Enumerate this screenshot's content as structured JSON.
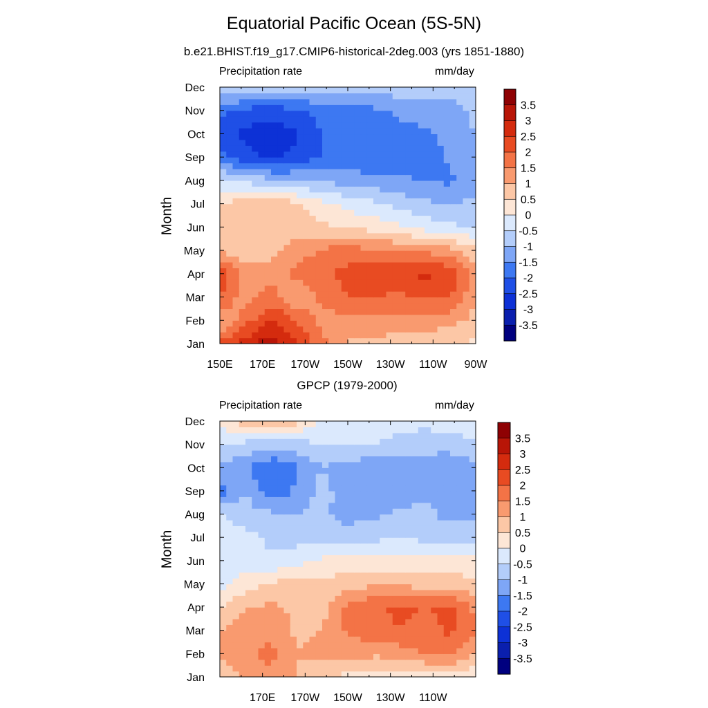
{
  "title": "Equatorial Pacific Ocean (5S-5N)",
  "subtitle": "b.e21.BHIST.f19_g17.CMIP6-historical-2deg.003 (yrs 1851-1880)",
  "chart_data": [
    {
      "type": "heatmap",
      "title": "",
      "left_label": "Precipitation rate",
      "right_label": "mm/day",
      "ylabel": "Month",
      "y_ticks": [
        "Jan",
        "Feb",
        "Mar",
        "Apr",
        "May",
        "Jun",
        "Jul",
        "Aug",
        "Sep",
        "Oct",
        "Nov",
        "Dec"
      ],
      "x_ticks": [
        "150E",
        "170E",
        "170W",
        "150W",
        "130W",
        "110W",
        "90W"
      ],
      "x_tick_positions": [
        150,
        170,
        190,
        210,
        230,
        250,
        270
      ],
      "xlim": [
        150,
        270
      ],
      "ylim": [
        0,
        11
      ],
      "x_grid": [
        150,
        162,
        174,
        186,
        198,
        210,
        222,
        234,
        246,
        258,
        270
      ],
      "y_grid": [
        0,
        1,
        2,
        3,
        4,
        5,
        6,
        7,
        8,
        9,
        10,
        11
      ],
      "z": [
        [
          2.2,
          2.8,
          3.3,
          2.5,
          1.7,
          0.9,
          0.8,
          0.7,
          0.6,
          0.5,
          0.4
        ],
        [
          0.8,
          1.8,
          2.5,
          2.0,
          1.3,
          1.3,
          1.4,
          1.4,
          1.3,
          1.2,
          0.8
        ],
        [
          2.0,
          1.2,
          1.8,
          1.0,
          1.6,
          2.0,
          2.0,
          1.9,
          2.0,
          2.0,
          1.1
        ],
        [
          2.3,
          1.3,
          1.2,
          1.7,
          1.9,
          2.2,
          2.4,
          2.4,
          2.6,
          2.4,
          1.4
        ],
        [
          0.9,
          0.7,
          0.8,
          1.2,
          1.6,
          1.7,
          1.6,
          1.5,
          1.4,
          1.2,
          0.6
        ],
        [
          0.6,
          0.5,
          0.7,
          0.8,
          0.6,
          0.5,
          0.3,
          0.1,
          -0.2,
          -0.4,
          -0.5
        ],
        [
          0.6,
          0.7,
          0.9,
          0.6,
          0.2,
          -0.2,
          -0.4,
          -0.7,
          -0.9,
          -1.0,
          -0.9
        ],
        [
          -0.4,
          -0.6,
          -0.9,
          -1.0,
          -1.1,
          -1.2,
          -1.3,
          -1.4,
          -1.5,
          -1.6,
          -1.2
        ],
        [
          -1.8,
          -2.3,
          -2.6,
          -2.3,
          -2.0,
          -1.9,
          -1.9,
          -1.9,
          -2.0,
          -1.4,
          -1.0
        ],
        [
          -2.2,
          -2.6,
          -2.8,
          -2.6,
          -2.0,
          -1.9,
          -1.8,
          -1.7,
          -1.6,
          -1.3,
          -1.0
        ],
        [
          -1.9,
          -2.2,
          -2.3,
          -2.1,
          -1.8,
          -1.7,
          -1.6,
          -1.4,
          -1.3,
          -1.2,
          -0.9
        ],
        [
          -0.6,
          -0.4,
          -0.6,
          -0.7,
          -0.8,
          -0.9,
          -0.8,
          -0.7,
          -0.6,
          -0.8,
          -0.7
        ]
      ]
    },
    {
      "type": "heatmap",
      "title": "GPCP (1979-2000)",
      "left_label": "Precipitation rate",
      "right_label": "mm/day",
      "ylabel": "Month",
      "y_ticks": [
        "Jan",
        "Feb",
        "Mar",
        "Apr",
        "May",
        "Jun",
        "Jul",
        "Aug",
        "Sep",
        "Oct",
        "Nov",
        "Dec"
      ],
      "x_ticks": [
        "170E",
        "170W",
        "150W",
        "130W",
        "110W"
      ],
      "x_tick_positions": [
        170,
        190,
        210,
        230,
        250
      ],
      "xlim": [
        150,
        270
      ],
      "ylim": [
        0,
        11
      ],
      "x_grid": [
        150,
        162,
        174,
        186,
        198,
        210,
        222,
        234,
        246,
        258,
        270
      ],
      "y_grid": [
        0,
        1,
        2,
        3,
        4,
        5,
        6,
        7,
        8,
        9,
        10,
        11
      ],
      "z": [
        [
          0.5,
          1.1,
          1.3,
          1.0,
          0.6,
          0.3,
          0.2,
          0.1,
          0.2,
          0.2,
          0.1
        ],
        [
          1.2,
          1.3,
          1.7,
          1.0,
          1.1,
          1.2,
          1.1,
          1.2,
          1.5,
          1.6,
          1.0
        ],
        [
          1.0,
          1.4,
          1.3,
          0.9,
          1.0,
          1.6,
          1.8,
          2.0,
          1.8,
          2.1,
          1.5
        ],
        [
          0.4,
          1.0,
          1.1,
          0.9,
          0.8,
          1.7,
          1.9,
          2.1,
          2.0,
          2.1,
          1.4
        ],
        [
          -0.3,
          0.3,
          0.6,
          0.7,
          0.6,
          0.8,
          0.9,
          0.9,
          0.8,
          0.8,
          0.6
        ],
        [
          -0.1,
          -0.4,
          -0.4,
          -0.2,
          0.1,
          0.2,
          0.1,
          0.1,
          0.1,
          0.1,
          0.2
        ],
        [
          -0.2,
          -0.3,
          -0.6,
          -0.7,
          -0.7,
          -0.8,
          -0.6,
          -0.5,
          -0.6,
          -0.7,
          -0.6
        ],
        [
          -0.4,
          -0.8,
          -0.9,
          -1.0,
          -0.9,
          -1.2,
          -1.1,
          -0.9,
          -0.8,
          -1.2,
          -1.1
        ],
        [
          -1.8,
          -1.0,
          -1.9,
          -1.4,
          -0.8,
          -1.3,
          -1.4,
          -1.3,
          -1.2,
          -1.1,
          -1.4
        ],
        [
          -1.1,
          -1.4,
          -2.0,
          -1.6,
          -1.0,
          -1.3,
          -1.4,
          -1.3,
          -1.1,
          -1.4,
          -1.2
        ],
        [
          -0.5,
          -0.7,
          -0.8,
          -0.7,
          -0.5,
          -0.4,
          -0.5,
          -0.7,
          -0.9,
          -0.8,
          -0.6
        ],
        [
          0.2,
          0.8,
          1.2,
          0.6,
          -0.1,
          -0.3,
          -0.2,
          -0.3,
          -0.3,
          -0.2,
          -0.2
        ]
      ]
    }
  ],
  "colorbar": {
    "levels": [
      -3.5,
      -3,
      -2.5,
      -2,
      -1.5,
      -1,
      -0.5,
      0,
      0.5,
      1,
      1.5,
      2,
      2.5,
      3,
      3.5
    ],
    "labels": [
      "3.5",
      "3",
      "2.5",
      "2",
      "1.5",
      "1",
      "0.5",
      "0",
      "-0.5",
      "-1",
      "-1.5",
      "-2",
      "-2.5",
      "-3",
      "-3.5"
    ],
    "colors": [
      "#00007f",
      "#0a1fae",
      "#0d31d6",
      "#1f4fe6",
      "#3d78f2",
      "#7ea6f6",
      "#b3cdfa",
      "#dbe9fd",
      "#fde6d6",
      "#fcc7a6",
      "#f99a6f",
      "#f37346",
      "#e84b22",
      "#d42b0e",
      "#b81507",
      "#8e0103"
    ]
  }
}
